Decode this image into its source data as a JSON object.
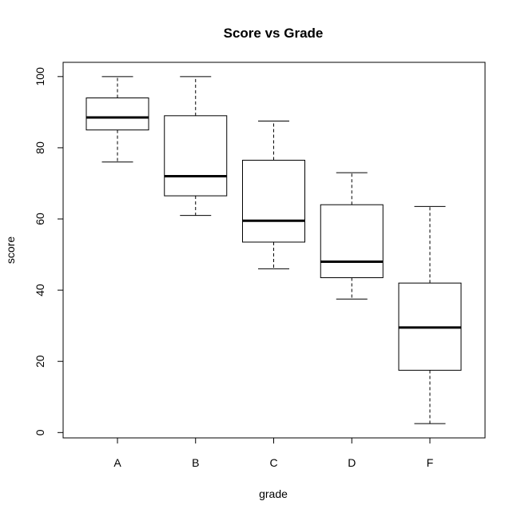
{
  "chart_data": {
    "type": "boxplot",
    "title": "Score vs Grade",
    "xlabel": "grade",
    "ylabel": "score",
    "ylim": [
      -1.5,
      104
    ],
    "yticks": [
      0,
      20,
      40,
      60,
      80,
      100
    ],
    "grid": false,
    "categories": [
      "A",
      "B",
      "C",
      "D",
      "F"
    ],
    "boxes": [
      {
        "category": "A",
        "min": 76,
        "q1": 85,
        "median": 88.5,
        "q3": 94,
        "max": 100
      },
      {
        "category": "B",
        "min": 61,
        "q1": 66.5,
        "median": 72,
        "q3": 89,
        "max": 100
      },
      {
        "category": "C",
        "min": 46,
        "q1": 53.5,
        "median": 59.5,
        "q3": 76.5,
        "max": 87.5
      },
      {
        "category": "D",
        "min": 37.5,
        "q1": 43.5,
        "median": 48,
        "q3": 64,
        "max": 73
      },
      {
        "category": "F",
        "min": 2.5,
        "q1": 17.5,
        "median": 29.5,
        "q3": 42,
        "max": 63.5
      }
    ]
  }
}
